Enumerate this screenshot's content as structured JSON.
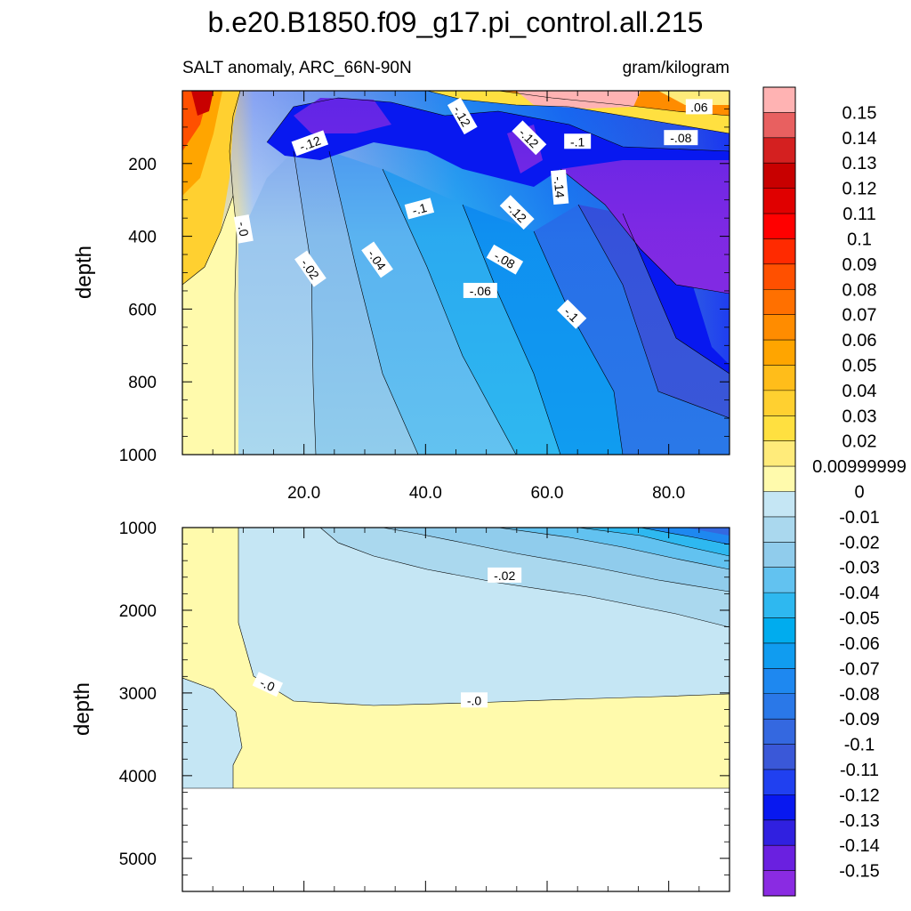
{
  "title": "b.e20.B1850.f09_g17.pi_control.all.215",
  "subtitle_left": "SALT anomaly, ARC_66N-90N",
  "subtitle_right": "gram/kilogram",
  "chart_data": [
    {
      "type": "heatmap",
      "panel": "upper",
      "ylabel": "depth",
      "ylim": [
        0,
        1000
      ],
      "y_inverted": true,
      "xlim": [
        0,
        90
      ],
      "x_ticks": [
        "20.0",
        "40.0",
        "60.0",
        "80.0"
      ],
      "y_ticks": [
        "200",
        "400",
        "600",
        "800",
        "1000"
      ],
      "contour_labels": [
        {
          "text": "-.12",
          "x": 46,
          "y": 70
        },
        {
          "text": "-.12",
          "x": 21,
          "y": 145
        },
        {
          "text": "-.12",
          "x": 57,
          "y": 130
        },
        {
          "text": "-.1",
          "x": 65,
          "y": 140
        },
        {
          "text": ".06",
          "x": 85,
          "y": 45
        },
        {
          "text": "-.08",
          "x": 82,
          "y": 130
        },
        {
          "text": "-.14",
          "x": 62,
          "y": 265
        },
        {
          "text": "-.12",
          "x": 55,
          "y": 335
        },
        {
          "text": "-.1",
          "x": 39,
          "y": 325
        },
        {
          "text": "-.0",
          "x": 10,
          "y": 380
        },
        {
          "text": "-.02",
          "x": 21,
          "y": 490
        },
        {
          "text": "-.04",
          "x": 32,
          "y": 465
        },
        {
          "text": "-.08",
          "x": 53,
          "y": 465
        },
        {
          "text": "-.06",
          "x": 49,
          "y": 550
        },
        {
          "text": "-.1",
          "x": 64,
          "y": 615
        }
      ]
    },
    {
      "type": "heatmap",
      "panel": "lower",
      "ylabel": "depth",
      "ylim": [
        1000,
        5400
      ],
      "y_inverted": true,
      "xlim": [
        0,
        90
      ],
      "y_ticks": [
        "1000",
        "2000",
        "3000",
        "4000",
        "5000"
      ],
      "contour_labels": [
        {
          "text": "-.02",
          "x": 53,
          "y": 1580
        },
        {
          "text": "-.0",
          "x": 14,
          "y": 2900
        },
        {
          "text": "-.0",
          "x": 48,
          "y": 3090
        }
      ]
    }
  ],
  "colorbar": {
    "labels": [
      "0.15",
      "0.14",
      "0.13",
      "0.12",
      "0.11",
      "0.1",
      "0.09",
      "0.08",
      "0.07",
      "0.06",
      "0.05",
      "0.04",
      "0.03",
      "0.02",
      "0.00999999",
      "0",
      "-0.01",
      "-0.02",
      "-0.03",
      "-0.04",
      "-0.05",
      "-0.06",
      "-0.07",
      "-0.08",
      "-0.09",
      "-0.1",
      "-0.11",
      "-0.12",
      "-0.13",
      "-0.14",
      "-0.15"
    ],
    "colors": [
      "#ffb3b3",
      "#e86060",
      "#d42020",
      "#c80000",
      "#e00000",
      "#ff0000",
      "#ff2a00",
      "#ff5000",
      "#ff7000",
      "#ff8c00",
      "#ffa500",
      "#ffbd1a",
      "#ffd030",
      "#ffe040",
      "#ffeb7a",
      "#fffaac",
      "#c5e6f4",
      "#aad8ee",
      "#90ccec",
      "#62c2f0",
      "#2eb8f0",
      "#00acee",
      "#109cf0",
      "#1e88f0",
      "#2a78e8",
      "#3468e0",
      "#3a58d8",
      "#2040f0",
      "#0818f0",
      "#3020e0",
      "#6a20e0",
      "#8a2be2"
    ]
  }
}
